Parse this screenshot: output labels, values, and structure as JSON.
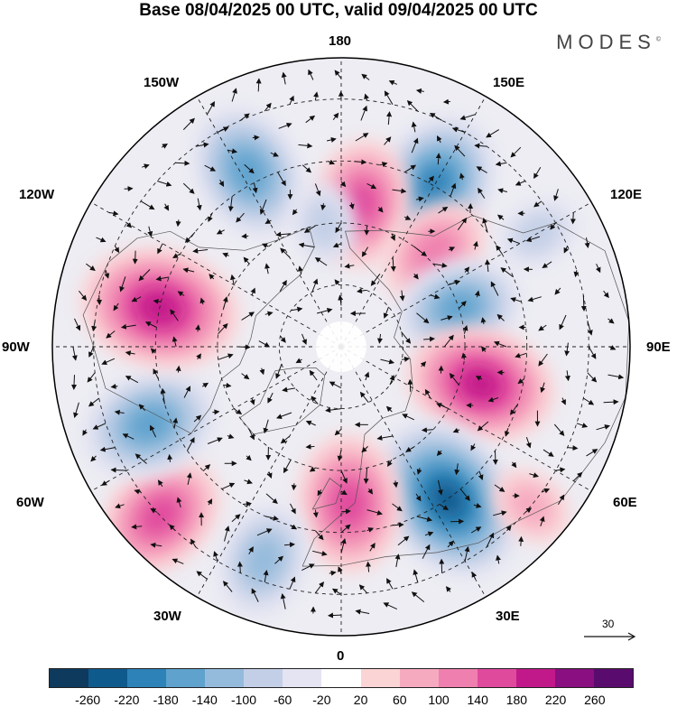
{
  "title": "Base 08/04/2025 00 UTC, valid 09/04/2025 00 UTC",
  "brand": "MODES",
  "brand_mark": "©",
  "longitude_labels": {
    "top": "180",
    "top_left": "150W",
    "top_right": "150E",
    "upper_left": "120W",
    "upper_right": "120E",
    "left": "90W",
    "right": "90E",
    "lower_left": "60W",
    "lower_right": "60E",
    "bottom_left": "30W",
    "bottom_right": "30E",
    "bottom": "0"
  },
  "reference_vector": {
    "label": "30"
  },
  "colorbar": {
    "colors": [
      "#0e3a5e",
      "#0f5a8d",
      "#2d82b8",
      "#5fa2cd",
      "#95bbdc",
      "#c3cfe6",
      "#e4e4f2",
      "#ffffff",
      "#fbd4d6",
      "#f6aac0",
      "#ef7fae",
      "#e04a9d",
      "#c2198a",
      "#8a0f80",
      "#5a0b6e"
    ],
    "ticks": [
      "-260",
      "-220",
      "-180",
      "-140",
      "-100",
      "-60",
      "-20",
      "20",
      "60",
      "100",
      "140",
      "180",
      "220",
      "260"
    ]
  },
  "map_features": {
    "projection": "north-polar-stereographic",
    "blobs": [
      {
        "lon": 150,
        "lat": 45,
        "value": -180
      },
      {
        "lon": 172,
        "lat": 55,
        "value": 140
      },
      {
        "lon": 135,
        "lat": 58,
        "value": 120
      },
      {
        "lon": 108,
        "lat": 60,
        "value": -140
      },
      {
        "lon": 75,
        "lat": 55,
        "value": 180
      },
      {
        "lon": 35,
        "lat": 45,
        "value": -220
      },
      {
        "lon": 3,
        "lat": 52,
        "value": 160
      },
      {
        "lon": -20,
        "lat": 35,
        "value": -120
      },
      {
        "lon": -47,
        "lat": 30,
        "value": 150
      },
      {
        "lon": -68,
        "lat": 40,
        "value": -160
      },
      {
        "lon": -102,
        "lat": 45,
        "value": 200
      },
      {
        "lon": -152,
        "lat": 42,
        "value": -160
      },
      {
        "lon": -172,
        "lat": 60,
        "value": -60
      },
      {
        "lon": 120,
        "lat": 35,
        "value": -60
      },
      {
        "lon": 50,
        "lat": 30,
        "value": 60
      }
    ]
  }
}
